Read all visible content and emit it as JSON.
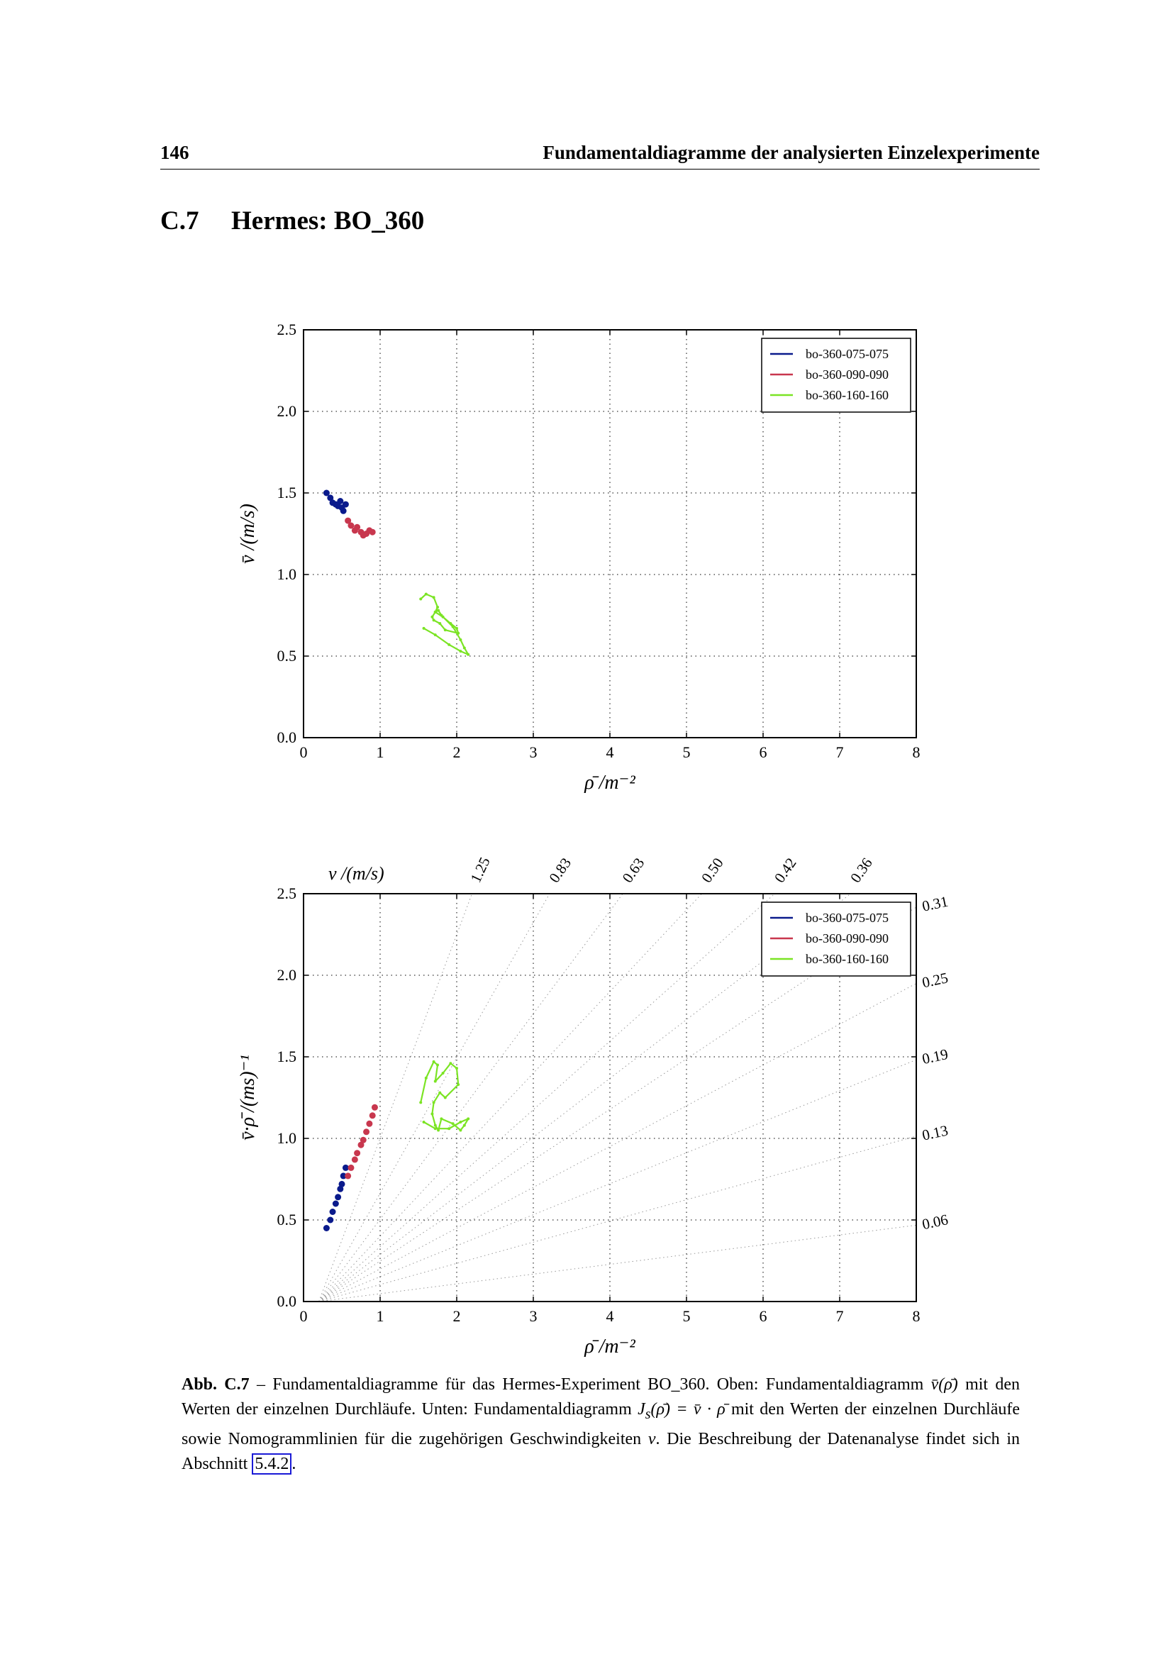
{
  "header": {
    "page_number": "146",
    "running_title": "Fundamentaldiagramme der analysierten Einzelexperimente"
  },
  "section": {
    "number": "C.7",
    "title": "Hermes: BO_360"
  },
  "chart_data": [
    {
      "type": "scatter",
      "title": "",
      "xlabel": "ρ̄ /m⁻²",
      "ylabel": "v̄ /(m/s)",
      "xlim": [
        0,
        8
      ],
      "ylim": [
        0,
        2.5
      ],
      "x_ticks": [
        "0",
        "1",
        "2",
        "3",
        "4",
        "5",
        "6",
        "7",
        "8"
      ],
      "y_ticks": [
        "0.0",
        "0.5",
        "1.0",
        "1.5",
        "2.0",
        "2.5"
      ],
      "grid": true,
      "legend_position": "top-right",
      "series": [
        {
          "name": "bo-360-075-075",
          "color": "#0a1a8c",
          "x": [
            0.3,
            0.35,
            0.38,
            0.42,
            0.45,
            0.48,
            0.5,
            0.52,
            0.55
          ],
          "y": [
            1.5,
            1.47,
            1.44,
            1.43,
            1.42,
            1.45,
            1.41,
            1.39,
            1.43
          ]
        },
        {
          "name": "bo-360-090-090",
          "color": "#c8374e",
          "x": [
            0.58,
            0.62,
            0.67,
            0.7,
            0.75,
            0.78,
            0.82,
            0.86,
            0.9
          ],
          "y": [
            1.33,
            1.3,
            1.27,
            1.29,
            1.26,
            1.24,
            1.25,
            1.27,
            1.26
          ]
        },
        {
          "name": "bo-360-160-160",
          "color": "#7be424",
          "x": [
            1.53,
            1.6,
            1.7,
            1.75,
            1.72,
            1.82,
            1.92,
            2.0,
            2.02,
            1.85,
            1.78,
            1.7,
            1.68,
            1.72,
            1.76,
            1.8,
            1.95,
            2.05,
            2.1,
            2.15,
            2.05,
            1.9,
            1.72,
            1.57
          ],
          "y": [
            0.85,
            0.88,
            0.86,
            0.8,
            0.77,
            0.74,
            0.7,
            0.67,
            0.64,
            0.66,
            0.7,
            0.72,
            0.74,
            0.77,
            0.78,
            0.75,
            0.68,
            0.6,
            0.55,
            0.51,
            0.53,
            0.57,
            0.63,
            0.67
          ]
        }
      ]
    },
    {
      "type": "scatter",
      "title": "",
      "xlabel": "ρ̄ /m⁻²",
      "ylabel": "v̄·ρ̄ /(ms)⁻¹",
      "xlim": [
        0,
        8
      ],
      "ylim": [
        0,
        2.5
      ],
      "x_ticks": [
        "0",
        "1",
        "2",
        "3",
        "4",
        "5",
        "6",
        "7",
        "8"
      ],
      "y_ticks": [
        "0.0",
        "0.5",
        "1.0",
        "1.5",
        "2.0",
        "2.5"
      ],
      "grid": true,
      "legend_position": "top-right",
      "nomogram_axis_label": "v /(m/s)",
      "nomogram_top_labels": [
        "1.25",
        "0.83",
        "0.63",
        "0.50",
        "0.42",
        "0.36"
      ],
      "nomogram_right_labels": [
        "0.31",
        "0.25",
        "0.19",
        "0.13",
        "0.06"
      ],
      "nomogram_top_values": [
        1.25,
        0.83,
        0.63,
        0.5,
        0.42,
        0.36
      ],
      "nomogram_right_values": [
        0.31,
        0.25,
        0.19,
        0.13,
        0.06
      ],
      "series": [
        {
          "name": "bo-360-075-075",
          "color": "#0a1a8c",
          "x": [
            0.3,
            0.35,
            0.38,
            0.42,
            0.45,
            0.48,
            0.5,
            0.52,
            0.55
          ],
          "y": [
            0.45,
            0.5,
            0.55,
            0.6,
            0.64,
            0.69,
            0.72,
            0.77,
            0.82
          ]
        },
        {
          "name": "bo-360-090-090",
          "color": "#c8374e",
          "x": [
            0.58,
            0.62,
            0.67,
            0.7,
            0.75,
            0.78,
            0.82,
            0.86,
            0.9,
            0.93
          ],
          "y": [
            0.77,
            0.82,
            0.87,
            0.91,
            0.96,
            0.99,
            1.04,
            1.09,
            1.14,
            1.19
          ]
        },
        {
          "name": "bo-360-160-160",
          "color": "#7be424",
          "x": [
            1.53,
            1.6,
            1.7,
            1.75,
            1.72,
            1.82,
            1.92,
            2.0,
            2.02,
            1.85,
            1.78,
            1.7,
            1.68,
            1.72,
            1.76,
            1.8,
            1.95,
            2.05,
            2.1,
            2.15,
            2.05,
            1.9,
            1.72,
            1.57
          ],
          "y": [
            1.22,
            1.37,
            1.47,
            1.45,
            1.35,
            1.4,
            1.46,
            1.43,
            1.33,
            1.25,
            1.28,
            1.22,
            1.15,
            1.08,
            1.05,
            1.12,
            1.09,
            1.05,
            1.08,
            1.12,
            1.1,
            1.06,
            1.06,
            1.1
          ]
        }
      ]
    }
  ],
  "caption": {
    "label": "Abb. C.7",
    "text_1": " – Fundamentaldiagramme für das Hermes-Experiment BO_360. Oben: Fundamentaldiagramm ",
    "math_1": "v̄(ρ̄)",
    "text_2": " mit den Werten der einzelnen Durchläufe. Unten: Fundamentaldiagramm ",
    "math_2": "J",
    "math_2_sub": "s",
    "math_3": "(ρ̄) = v̄ · ρ̄",
    "text_3": " mit den Werten der einzelnen Durchläufe sowie Nomogrammlinien für die zugehörigen Geschwindigkeiten ",
    "math_4": "v",
    "text_4": ". Die Beschreibung der Datenanalyse findet sich in Abschnitt ",
    "ref": "5.4.2",
    "text_5": "."
  }
}
